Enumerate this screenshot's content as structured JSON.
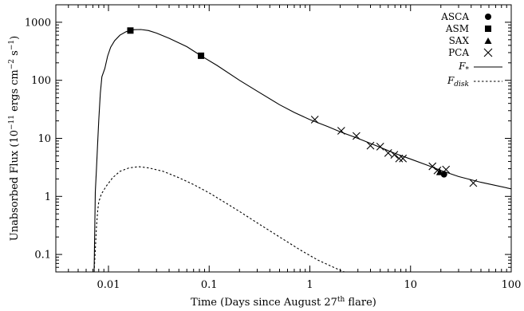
{
  "chart_data": {
    "type": "scatter",
    "xscale": "log",
    "yscale": "log",
    "xlim": [
      0.003,
      100
    ],
    "ylim": [
      0.05,
      2000
    ],
    "xlabel": "Time (Days since August 27th flare)",
    "xlabel_parts": {
      "before": "Time (Days since August 27",
      "sup": "th",
      "after": " flare)"
    },
    "ylabel": "Unabsorbed Flux (10⁻¹¹ ergs cm⁻² s⁻¹)",
    "ylabel_parts": {
      "before": "Unabsorbed Flux (10",
      "sup1": "−11",
      "mid1": " ergs cm",
      "sup2": "−2",
      "mid2": " s",
      "sup3": "−1",
      "after": ")"
    },
    "xticks": [
      0.01,
      0.1,
      1,
      10,
      100
    ],
    "xtick_labels": [
      "0.01",
      "0.1",
      "1",
      "10",
      "100"
    ],
    "yticks": [
      0.1,
      1,
      10,
      100,
      1000
    ],
    "ytick_labels": [
      "0.1",
      "1",
      "10",
      "100",
      "1000"
    ],
    "grid": false,
    "legend_position": "top-right",
    "legend": [
      {
        "name": "ASCA",
        "marker": "circle"
      },
      {
        "name": "ASM",
        "marker": "square"
      },
      {
        "name": "SAX",
        "marker": "triangle"
      },
      {
        "name": "PCA",
        "marker": "cross"
      },
      {
        "name": "F",
        "sub": "*",
        "line": "solid"
      },
      {
        "name": "F",
        "sub": "disk",
        "line": "dotted"
      }
    ],
    "series": [
      {
        "name": "ASCA",
        "marker": "circle",
        "points": [
          {
            "x": 21.5,
            "y": 2.4
          }
        ]
      },
      {
        "name": "ASM",
        "marker": "square",
        "points": [
          {
            "x": 0.0165,
            "y": 720
          },
          {
            "x": 0.083,
            "y": 265
          }
        ]
      },
      {
        "name": "SAX",
        "marker": "triangle",
        "points": [
          {
            "x": 19.5,
            "y": 2.6
          }
        ]
      },
      {
        "name": "PCA",
        "marker": "cross",
        "points": [
          {
            "x": 1.12,
            "y": 21
          },
          {
            "x": 2.05,
            "y": 13.5
          },
          {
            "x": 2.9,
            "y": 11
          },
          {
            "x": 4.0,
            "y": 7.5
          },
          {
            "x": 5.0,
            "y": 7.2
          },
          {
            "x": 6.0,
            "y": 5.6
          },
          {
            "x": 6.9,
            "y": 5.2
          },
          {
            "x": 7.7,
            "y": 4.5
          },
          {
            "x": 8.4,
            "y": 4.5
          },
          {
            "x": 16.5,
            "y": 3.3
          },
          {
            "x": 18.5,
            "y": 2.8
          },
          {
            "x": 22.5,
            "y": 2.9
          },
          {
            "x": 42.0,
            "y": 1.7
          }
        ]
      },
      {
        "name": "F*",
        "line": "solid",
        "points": [
          {
            "x": 0.0072,
            "y": 0.05
          },
          {
            "x": 0.0074,
            "y": 1.2
          },
          {
            "x": 0.0076,
            "y": 3
          },
          {
            "x": 0.0078,
            "y": 8
          },
          {
            "x": 0.008,
            "y": 20
          },
          {
            "x": 0.0083,
            "y": 60
          },
          {
            "x": 0.0086,
            "y": 115
          },
          {
            "x": 0.0092,
            "y": 160
          },
          {
            "x": 0.0098,
            "y": 260
          },
          {
            "x": 0.0105,
            "y": 370
          },
          {
            "x": 0.0115,
            "y": 480
          },
          {
            "x": 0.013,
            "y": 600
          },
          {
            "x": 0.015,
            "y": 690
          },
          {
            "x": 0.018,
            "y": 745
          },
          {
            "x": 0.021,
            "y": 750
          },
          {
            "x": 0.025,
            "y": 720
          },
          {
            "x": 0.03,
            "y": 650
          },
          {
            "x": 0.04,
            "y": 530
          },
          {
            "x": 0.06,
            "y": 380
          },
          {
            "x": 0.083,
            "y": 265
          },
          {
            "x": 0.12,
            "y": 180
          },
          {
            "x": 0.2,
            "y": 100
          },
          {
            "x": 0.3,
            "y": 65
          },
          {
            "x": 0.5,
            "y": 38
          },
          {
            "x": 0.7,
            "y": 28
          },
          {
            "x": 1.0,
            "y": 21
          },
          {
            "x": 1.5,
            "y": 16
          },
          {
            "x": 2.0,
            "y": 13
          },
          {
            "x": 3.0,
            "y": 10
          },
          {
            "x": 5.0,
            "y": 7
          },
          {
            "x": 7.0,
            "y": 5.5
          },
          {
            "x": 10.0,
            "y": 4.4
          },
          {
            "x": 15.0,
            "y": 3.4
          },
          {
            "x": 20.0,
            "y": 2.8
          },
          {
            "x": 30.0,
            "y": 2.2
          },
          {
            "x": 50.0,
            "y": 1.75
          },
          {
            "x": 100.0,
            "y": 1.35
          }
        ]
      },
      {
        "name": "Fdisk",
        "line": "dotted",
        "points": [
          {
            "x": 0.0072,
            "y": 0.05
          },
          {
            "x": 0.0074,
            "y": 0.12
          },
          {
            "x": 0.0076,
            "y": 0.3
          },
          {
            "x": 0.0078,
            "y": 0.55
          },
          {
            "x": 0.008,
            "y": 0.8
          },
          {
            "x": 0.0085,
            "y": 1.1
          },
          {
            "x": 0.0095,
            "y": 1.5
          },
          {
            "x": 0.011,
            "y": 2.1
          },
          {
            "x": 0.013,
            "y": 2.7
          },
          {
            "x": 0.016,
            "y": 3.1
          },
          {
            "x": 0.02,
            "y": 3.25
          },
          {
            "x": 0.025,
            "y": 3.1
          },
          {
            "x": 0.035,
            "y": 2.7
          },
          {
            "x": 0.05,
            "y": 2.1
          },
          {
            "x": 0.07,
            "y": 1.6
          },
          {
            "x": 0.1,
            "y": 1.15
          },
          {
            "x": 0.15,
            "y": 0.75
          },
          {
            "x": 0.2,
            "y": 0.55
          },
          {
            "x": 0.3,
            "y": 0.35
          },
          {
            "x": 0.5,
            "y": 0.2
          },
          {
            "x": 0.8,
            "y": 0.12
          },
          {
            "x": 1.2,
            "y": 0.08
          },
          {
            "x": 1.8,
            "y": 0.058
          },
          {
            "x": 2.2,
            "y": 0.05
          }
        ]
      }
    ]
  }
}
